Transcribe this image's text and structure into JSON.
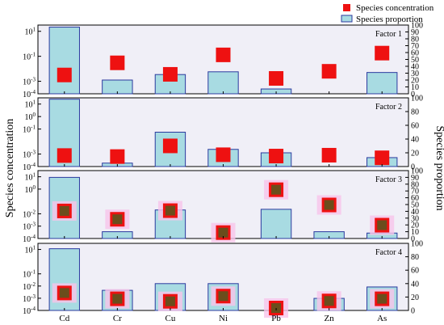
{
  "legend": {
    "concentration_label": "Species concentration",
    "proportion_label": "Species proportion"
  },
  "y_left_title": "Species concentration",
  "y_right_title": "Species proportion",
  "colors": {
    "panel_bg": "#f0eff7",
    "bar_fill": "#a8dbe2",
    "bar_edge": "#2b3a9f",
    "marker": "#ee1111",
    "marker_dark": "#6b4d1c",
    "marker_halo": "#f7c4ea"
  },
  "chart_data": [
    {
      "type": "bar",
      "factor_label": "Factor 1",
      "categories": [
        "Cd",
        "Cr",
        "Cu",
        "Ni",
        "Pb",
        "Zn",
        "As"
      ],
      "series": [
        {
          "name": "Species proportion",
          "axis": "right",
          "values": [
            97,
            20,
            28,
            32,
            7,
            0,
            31
          ]
        },
        {
          "name": "Species concentration",
          "axis": "left",
          "values": [
            0.0032,
            0.03,
            0.0036,
            0.13,
            0.0017,
            0.0063,
            0.18
          ]
        }
      ],
      "left_ticks": [
        "10^-4",
        "10^-3",
        "10^-1",
        "10^1"
      ],
      "right_ticks": [
        "0",
        "10",
        "20",
        "30",
        "40",
        "50",
        "60",
        "70",
        "80",
        "90",
        "100"
      ],
      "ylim_right": [
        0,
        100
      ]
    },
    {
      "type": "bar",
      "factor_label": "Factor 2",
      "categories": [
        "Cd",
        "Cr",
        "Cu",
        "Ni",
        "Pb",
        "Zn",
        "As"
      ],
      "series": [
        {
          "name": "Species proportion",
          "axis": "right",
          "values": [
            98,
            5,
            50,
            25,
            20,
            0,
            13
          ]
        },
        {
          "name": "Species concentration",
          "axis": "left",
          "values": [
            0.00076,
            0.00063,
            0.0045,
            0.00088,
            0.00069,
            0.00081,
            0.0005
          ]
        }
      ],
      "left_ticks": [
        "10^-4",
        "10^-3",
        "10^-1",
        "10^0",
        "10^1"
      ],
      "right_ticks": [
        "0",
        "20",
        "40",
        "60",
        "80",
        "100"
      ],
      "ylim_right": [
        0,
        100
      ]
    },
    {
      "type": "bar",
      "factor_label": "Factor 3",
      "categories": [
        "Cd",
        "Cr",
        "Cu",
        "Ni",
        "Pb",
        "Zn",
        "As"
      ],
      "series": [
        {
          "name": "Species proportion",
          "axis": "right",
          "values": [
            90,
            10,
            42,
            0,
            43,
            10,
            8
          ]
        },
        {
          "name": "Species concentration",
          "axis": "left",
          "values": [
            0.017,
            0.0036,
            0.018,
            0.0003,
            0.89,
            0.052,
            0.0012
          ]
        }
      ],
      "left_ticks": [
        "10^-4",
        "10^-3",
        "10^-2",
        "10^0",
        "10^1"
      ],
      "right_ticks": [
        "0",
        "10",
        "20",
        "30",
        "40",
        "50",
        "60",
        "70",
        "80",
        "90",
        "100"
      ],
      "ylim_right": [
        0,
        100
      ]
    },
    {
      "type": "bar",
      "factor_label": "Factor 4",
      "categories": [
        "Cd",
        "Cr",
        "Cu",
        "Ni",
        "Pb",
        "Zn",
        "As"
      ],
      "series": [
        {
          "name": "Species proportion",
          "axis": "right",
          "values": [
            92,
            30,
            40,
            40,
            0,
            18,
            35
          ]
        },
        {
          "name": "Species concentration",
          "axis": "left",
          "values": [
            0.0027,
            0.0009,
            0.00056,
            0.0015,
            0.00013,
            0.0006,
            0.0009
          ]
        }
      ],
      "left_ticks": [
        "10^-4",
        "10^-3",
        "10^-2",
        "10^-1",
        "10^1"
      ],
      "right_ticks": [
        "0",
        "20",
        "40",
        "60",
        "80",
        "100"
      ],
      "ylim_right": [
        0,
        100
      ]
    }
  ]
}
